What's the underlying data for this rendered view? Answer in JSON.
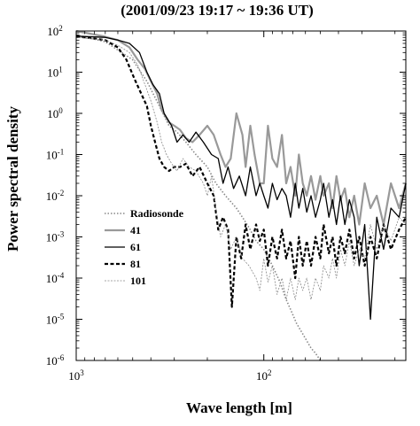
{
  "chart_data": {
    "type": "line",
    "title": "(2001/09/23 19:17 ~ 19:36 UT)",
    "xlabel": "Wave length [m]",
    "ylabel": "Power spectral density",
    "x_scale": "log",
    "y_scale": "log",
    "x_reversed": true,
    "xlim": [
      1000,
      17.5
    ],
    "ylim": [
      1e-06,
      100
    ],
    "x_ticks": [
      {
        "value": 1000,
        "base": "10",
        "exp": "3"
      },
      {
        "value": 100,
        "base": "10",
        "exp": "2"
      }
    ],
    "y_ticks": [
      {
        "value": 100,
        "base": "10",
        "exp": "2"
      },
      {
        "value": 10,
        "base": "10",
        "exp": "1"
      },
      {
        "value": 1,
        "base": "10",
        "exp": "0"
      },
      {
        "value": 0.1,
        "base": "10",
        "exp": "-1"
      },
      {
        "value": 0.01,
        "base": "10",
        "exp": "-2"
      },
      {
        "value": 0.001,
        "base": "10",
        "exp": "-3"
      },
      {
        "value": 0.0001,
        "base": "10",
        "exp": "-4"
      },
      {
        "value": 1e-05,
        "base": "10",
        "exp": "-5"
      },
      {
        "value": 1e-06,
        "base": "10",
        "exp": "-6"
      }
    ],
    "legend_position": "lower-left",
    "series": [
      {
        "name": "Radiosonde",
        "color": "#888888",
        "style": "dotted",
        "points": [
          [
            1000,
            80
          ],
          [
            700,
            55
          ],
          [
            500,
            20
          ],
          [
            420,
            6
          ],
          [
            360,
            1.5
          ],
          [
            320,
            0.5
          ],
          [
            290,
            0.35
          ],
          [
            260,
            0.2
          ],
          [
            230,
            0.1
          ],
          [
            200,
            0.05
          ],
          [
            180,
            0.02
          ],
          [
            160,
            0.01
          ],
          [
            140,
            0.005
          ],
          [
            130,
            0.003
          ],
          [
            120,
            0.0017
          ],
          [
            110,
            0.0008
          ],
          [
            100,
            0.0005
          ],
          [
            90,
            0.0002
          ],
          [
            82,
            8e-05
          ],
          [
            76,
            3e-05
          ],
          [
            71,
            1.5e-05
          ],
          [
            67,
            8e-06
          ],
          [
            63,
            5e-06
          ],
          [
            59,
            3e-06
          ],
          [
            56,
            2e-06
          ],
          [
            53,
            1.5e-06
          ],
          [
            50,
            1e-06
          ]
        ]
      },
      {
        "name": "41",
        "color": "#999999",
        "style": "solid",
        "points": [
          [
            1000,
            100
          ],
          [
            720,
            75
          ],
          [
            600,
            60
          ],
          [
            520,
            40
          ],
          [
            470,
            20
          ],
          [
            430,
            12
          ],
          [
            400,
            6
          ],
          [
            370,
            3
          ],
          [
            350,
            1.2
          ],
          [
            320,
            0.6
          ],
          [
            300,
            0.5
          ],
          [
            280,
            0.4
          ],
          [
            260,
            0.25
          ],
          [
            240,
            0.2
          ],
          [
            220,
            0.3
          ],
          [
            200,
            0.5
          ],
          [
            185,
            0.3
          ],
          [
            170,
            0.1
          ],
          [
            160,
            0.05
          ],
          [
            150,
            0.08
          ],
          [
            140,
            1.0
          ],
          [
            130,
            0.3
          ],
          [
            125,
            0.05
          ],
          [
            118,
            0.5
          ],
          [
            112,
            0.1
          ],
          [
            105,
            0.02
          ],
          [
            100,
            0.02
          ],
          [
            95,
            0.5
          ],
          [
            90,
            0.08
          ],
          [
            85,
            0.05
          ],
          [
            80,
            0.3
          ],
          [
            76,
            0.02
          ],
          [
            72,
            0.05
          ],
          [
            68,
            0.01
          ],
          [
            65,
            0.1
          ],
          [
            62,
            0.02
          ],
          [
            59,
            0.01
          ],
          [
            56,
            0.03
          ],
          [
            53,
            0.008
          ],
          [
            50,
            0.03
          ],
          [
            48,
            0.01
          ],
          [
            45,
            0.02
          ],
          [
            43,
            0.005
          ],
          [
            41,
            0.03
          ],
          [
            39,
            0.008
          ],
          [
            37,
            0.015
          ],
          [
            35,
            0.003
          ],
          [
            33,
            0.01
          ],
          [
            31,
            0.002
          ],
          [
            29,
            0.02
          ],
          [
            27,
            0.005
          ],
          [
            25,
            0.01
          ],
          [
            23,
            0.002
          ],
          [
            21,
            0.02
          ],
          [
            19,
            0.005
          ],
          [
            17.5,
            0.02
          ]
        ]
      },
      {
        "name": "61",
        "color": "#000000",
        "style": "solid",
        "points": [
          [
            1000,
            75
          ],
          [
            700,
            70
          ],
          [
            600,
            60
          ],
          [
            520,
            50
          ],
          [
            460,
            30
          ],
          [
            420,
            10
          ],
          [
            390,
            5
          ],
          [
            360,
            3
          ],
          [
            340,
            1
          ],
          [
            310,
            0.5
          ],
          [
            290,
            0.2
          ],
          [
            270,
            0.3
          ],
          [
            250,
            0.2
          ],
          [
            230,
            0.35
          ],
          [
            210,
            0.2
          ],
          [
            190,
            0.1
          ],
          [
            175,
            0.08
          ],
          [
            165,
            0.02
          ],
          [
            155,
            0.05
          ],
          [
            145,
            0.015
          ],
          [
            135,
            0.03
          ],
          [
            125,
            0.01
          ],
          [
            118,
            0.05
          ],
          [
            110,
            0.01
          ],
          [
            105,
            0.02
          ],
          [
            100,
            0.01
          ],
          [
            95,
            0.005
          ],
          [
            90,
            0.02
          ],
          [
            85,
            0.008
          ],
          [
            80,
            0.015
          ],
          [
            76,
            0.01
          ],
          [
            72,
            0.003
          ],
          [
            68,
            0.02
          ],
          [
            65,
            0.005
          ],
          [
            62,
            0.015
          ],
          [
            59,
            0.004
          ],
          [
            56,
            0.01
          ],
          [
            53,
            0.003
          ],
          [
            50,
            0.008
          ],
          [
            48,
            0.02
          ],
          [
            45,
            0.003
          ],
          [
            43,
            0.008
          ],
          [
            41,
            0.002
          ],
          [
            39,
            0.01
          ],
          [
            37,
            0.002
          ],
          [
            35,
            0.008
          ],
          [
            33,
            0.003
          ],
          [
            31,
            0.0002
          ],
          [
            29,
            0.002
          ],
          [
            27,
            1e-05
          ],
          [
            25,
            0.003
          ],
          [
            23,
            0.0005
          ],
          [
            21,
            0.005
          ],
          [
            19,
            0.003
          ],
          [
            17.5,
            0.02
          ]
        ]
      },
      {
        "name": "81",
        "color": "#000000",
        "style": "dashed",
        "points": [
          [
            1000,
            75
          ],
          [
            700,
            60
          ],
          [
            600,
            40
          ],
          [
            540,
            20
          ],
          [
            490,
            7
          ],
          [
            450,
            3
          ],
          [
            420,
            1.5
          ],
          [
            400,
            0.5
          ],
          [
            380,
            0.2
          ],
          [
            360,
            0.08
          ],
          [
            340,
            0.05
          ],
          [
            320,
            0.04
          ],
          [
            300,
            0.05
          ],
          [
            280,
            0.05
          ],
          [
            260,
            0.06
          ],
          [
            240,
            0.03
          ],
          [
            220,
            0.05
          ],
          [
            200,
            0.02
          ],
          [
            185,
            0.01
          ],
          [
            175,
            0.0015
          ],
          [
            165,
            0.003
          ],
          [
            155,
            0.0015
          ],
          [
            148,
            2e-05
          ],
          [
            140,
            0.001
          ],
          [
            132,
            0.0003
          ],
          [
            125,
            0.002
          ],
          [
            118,
            0.0005
          ],
          [
            110,
            0.002
          ],
          [
            105,
            0.0008
          ],
          [
            100,
            0.0015
          ],
          [
            95,
            0.0002
          ],
          [
            90,
            0.001
          ],
          [
            85,
            0.0003
          ],
          [
            80,
            0.0015
          ],
          [
            76,
            0.0003
          ],
          [
            72,
            0.0008
          ],
          [
            68,
            0.0001
          ],
          [
            65,
            0.001
          ],
          [
            62,
            0.0002
          ],
          [
            59,
            0.0008
          ],
          [
            56,
            0.0002
          ],
          [
            53,
            0.001
          ],
          [
            50,
            0.0003
          ],
          [
            48,
            0.002
          ],
          [
            45,
            0.0004
          ],
          [
            43,
            0.001
          ],
          [
            41,
            0.0002
          ],
          [
            39,
            0.001
          ],
          [
            37,
            0.0004
          ],
          [
            35,
            0.0015
          ],
          [
            33,
            0.0003
          ],
          [
            31,
            0.001
          ],
          [
            29,
            0.0002
          ],
          [
            27,
            0.001
          ],
          [
            25,
            0.0003
          ],
          [
            23,
            0.002
          ],
          [
            21,
            0.0005
          ],
          [
            19,
            0.0015
          ],
          [
            17.5,
            0.003
          ]
        ]
      },
      {
        "name": "101",
        "color": "#888888",
        "style": "thin",
        "points": [
          [
            1000,
            70
          ],
          [
            700,
            60
          ],
          [
            600,
            45
          ],
          [
            520,
            30
          ],
          [
            470,
            15
          ],
          [
            430,
            5
          ],
          [
            400,
            2
          ],
          [
            370,
            0.6
          ],
          [
            350,
            0.2
          ],
          [
            330,
            0.1
          ],
          [
            310,
            0.06
          ],
          [
            290,
            0.04
          ],
          [
            270,
            0.08
          ],
          [
            250,
            0.05
          ],
          [
            230,
            0.04
          ],
          [
            210,
            0.02
          ],
          [
            200,
            0.01
          ],
          [
            190,
            0.03
          ],
          [
            180,
            0.005
          ],
          [
            170,
            0.001
          ],
          [
            160,
            0.002
          ],
          [
            150,
            0.0005
          ],
          [
            140,
            0.001
          ],
          [
            130,
            0.0003
          ],
          [
            120,
            0.0002
          ],
          [
            110,
            0.0001
          ],
          [
            105,
            5e-05
          ],
          [
            100,
            0.0003
          ],
          [
            95,
            8e-05
          ],
          [
            90,
            0.0002
          ],
          [
            85,
            4e-05
          ],
          [
            80,
            0.0001
          ],
          [
            76,
            3e-05
          ],
          [
            72,
            0.0001
          ],
          [
            68,
            3e-05
          ],
          [
            65,
            0.0001
          ],
          [
            62,
            5e-05
          ],
          [
            59,
            0.0001
          ],
          [
            56,
            3e-05
          ],
          [
            53,
            0.0001
          ],
          [
            50,
            5e-05
          ],
          [
            48,
            0.0002
          ],
          [
            45,
            0.0001
          ],
          [
            43,
            0.0003
          ],
          [
            41,
            0.0001
          ],
          [
            39,
            0.0005
          ],
          [
            37,
            0.0002
          ],
          [
            35,
            0.0008
          ],
          [
            33,
            0.0002
          ],
          [
            31,
            0.0005
          ],
          [
            29,
            0.0003
          ],
          [
            27,
            0.002
          ],
          [
            25,
            0.0005
          ],
          [
            23,
            0.002
          ],
          [
            21,
            0.0008
          ],
          [
            19,
            0.003
          ],
          [
            17.5,
            0.002
          ]
        ]
      }
    ]
  }
}
